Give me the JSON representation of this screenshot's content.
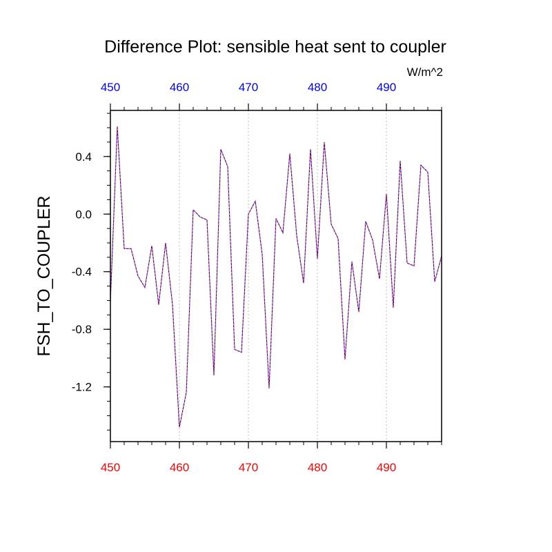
{
  "chart_data": {
    "type": "line",
    "title": "Difference Plot: sensible heat sent to coupler",
    "units": "W/m^2",
    "ylabel": "FSH_TO_COUPLER",
    "xlabel": "",
    "xlim": [
      450,
      498
    ],
    "ylim": [
      -1.58,
      0.72
    ],
    "x_ticks": [
      450,
      460,
      470,
      480,
      490
    ],
    "x_tick_labels": [
      "450",
      "460",
      "470",
      "480",
      "490"
    ],
    "y_ticks": [
      0.4,
      0.0,
      -0.4,
      -0.8,
      -1.2
    ],
    "y_tick_labels": [
      "0.4",
      "0.0",
      "-0.4",
      "-0.8",
      "-1.2"
    ],
    "grid": "vertical dotted at major x ticks",
    "top_axis_color": "#0000ff",
    "bottom_axis_color": "#ff0000",
    "series": [
      {
        "color": "#0000ff",
        "dash": "dashed",
        "x": [
          450,
          451,
          452,
          453,
          454,
          455,
          456,
          457,
          458,
          459,
          460,
          461,
          462,
          463,
          464,
          465,
          466,
          467,
          468,
          469,
          470,
          471,
          472,
          473,
          474,
          475,
          476,
          477,
          478,
          479,
          480,
          481,
          482,
          483,
          484,
          485,
          486,
          487,
          488,
          489,
          490,
          491,
          492,
          493,
          494,
          495,
          496,
          497,
          498
        ],
        "values": [
          -0.61,
          0.61,
          -0.24,
          -0.24,
          -0.43,
          -0.51,
          -0.22,
          -0.63,
          -0.2,
          -0.63,
          -1.48,
          -1.24,
          0.03,
          -0.02,
          -0.04,
          -1.12,
          0.45,
          0.33,
          -0.94,
          -0.96,
          0.0,
          0.09,
          -0.28,
          -1.21,
          -0.03,
          -0.13,
          0.42,
          -0.15,
          -0.48,
          0.45,
          -0.31,
          0.5,
          -0.07,
          -0.17,
          -1.01,
          -0.33,
          -0.68,
          -0.05,
          -0.18,
          -0.45,
          0.14,
          -0.65,
          0.37,
          -0.34,
          -0.36,
          0.34,
          0.29,
          -0.47,
          -0.29
        ]
      },
      {
        "color": "#ff0000",
        "dash": "dashed",
        "x": [
          450,
          451,
          452,
          453,
          454,
          455,
          456,
          457,
          458,
          459,
          460,
          461,
          462,
          463,
          464,
          465,
          466,
          467,
          468,
          469,
          470,
          471,
          472,
          473,
          474,
          475,
          476,
          477,
          478,
          479,
          480,
          481,
          482,
          483,
          484,
          485,
          486,
          487,
          488,
          489,
          490,
          491,
          492,
          493,
          494,
          495,
          496,
          497,
          498
        ],
        "values": [
          -0.61,
          0.61,
          -0.24,
          -0.24,
          -0.43,
          -0.51,
          -0.22,
          -0.63,
          -0.2,
          -0.63,
          -1.48,
          -1.24,
          0.03,
          -0.02,
          -0.04,
          -1.12,
          0.45,
          0.33,
          -0.94,
          -0.96,
          0.0,
          0.09,
          -0.28,
          -1.21,
          -0.03,
          -0.13,
          0.42,
          -0.15,
          -0.48,
          0.45,
          -0.31,
          0.5,
          -0.07,
          -0.17,
          -1.01,
          -0.33,
          -0.68,
          -0.05,
          -0.18,
          -0.45,
          0.14,
          -0.65,
          0.37,
          -0.34,
          -0.36,
          0.34,
          0.29,
          -0.47,
          -0.29
        ]
      }
    ]
  }
}
